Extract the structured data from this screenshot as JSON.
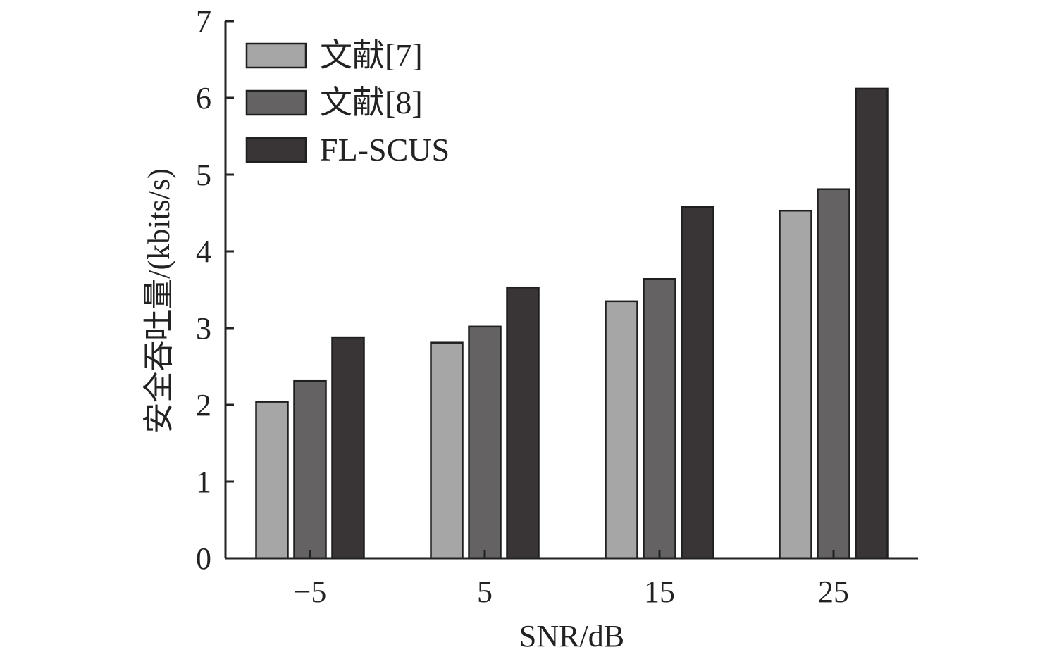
{
  "chart_data": {
    "type": "bar",
    "title": "",
    "xlabel": "SNR/dB",
    "ylabel": "安全吞吐量/(kbits/s)",
    "categories": [
      "−5",
      "5",
      "15",
      "25"
    ],
    "ylim": [
      0,
      7
    ],
    "yticks": [
      "0",
      "1",
      "2",
      "3",
      "4",
      "5",
      "6",
      "7"
    ],
    "grid": false,
    "legend_position": "top-left",
    "series": [
      {
        "name": "文献[7]",
        "color": "#a7a6a7",
        "values": [
          2.04,
          2.81,
          3.35,
          4.53
        ]
      },
      {
        "name": "文献[8]",
        "color": "#646263",
        "values": [
          2.31,
          3.02,
          3.64,
          4.81
        ]
      },
      {
        "name": "FL-SCUS",
        "color": "#393536",
        "values": [
          2.88,
          3.53,
          4.58,
          6.12
        ]
      }
    ]
  }
}
